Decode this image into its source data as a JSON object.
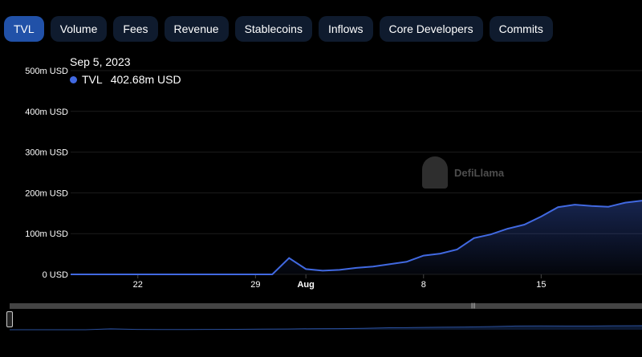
{
  "tabs": [
    {
      "label": "TVL",
      "active": true
    },
    {
      "label": "Volume",
      "active": false
    },
    {
      "label": "Fees",
      "active": false
    },
    {
      "label": "Revenue",
      "active": false
    },
    {
      "label": "Stablecoins",
      "active": false
    },
    {
      "label": "Inflows",
      "active": false
    },
    {
      "label": "Core Developers",
      "active": false
    },
    {
      "label": "Commits",
      "active": false
    }
  ],
  "tooltip": {
    "date": "Sep 5, 2023",
    "series": "TVL",
    "value": "402.68m USD"
  },
  "watermark": {
    "text": "DefiLlama"
  },
  "colors": {
    "accent": "#4169e1",
    "active_tab": "#2151a8",
    "tab_bg": "#0f1b2e",
    "background": "#000000"
  },
  "chart_data": {
    "type": "area",
    "series": [
      {
        "name": "TVL",
        "x": [
          "2023-07-18",
          "2023-07-22",
          "2023-07-29",
          "2023-07-30",
          "2023-07-31",
          "2023-08-01",
          "2023-08-02",
          "2023-08-03",
          "2023-08-04",
          "2023-08-05",
          "2023-08-06",
          "2023-08-07",
          "2023-08-08",
          "2023-08-09",
          "2023-08-10",
          "2023-08-11",
          "2023-08-12",
          "2023-08-13",
          "2023-08-14",
          "2023-08-15",
          "2023-08-16",
          "2023-08-17",
          "2023-08-18",
          "2023-08-19",
          "2023-08-20",
          "2023-08-21"
        ],
        "values": [
          0,
          0,
          0,
          0,
          40,
          13,
          9,
          11,
          16,
          19,
          25,
          31,
          46,
          51,
          61,
          89,
          98,
          112,
          122,
          142,
          165,
          171,
          168,
          166,
          176,
          181
        ]
      }
    ],
    "x_ticks": [
      "22",
      "29",
      "Aug",
      "8",
      "15"
    ],
    "x_tick_dates": [
      "2023-07-22",
      "2023-07-29",
      "2023-08-01",
      "2023-08-08",
      "2023-08-15"
    ],
    "x_range": [
      "2023-07-18",
      "2023-08-21"
    ],
    "y_ticks": [
      "0 USD",
      "100m USD",
      "200m USD",
      "300m USD",
      "400m USD",
      "500m USD"
    ],
    "ylim": [
      0,
      500
    ],
    "yunit": "m USD",
    "grid": true
  }
}
